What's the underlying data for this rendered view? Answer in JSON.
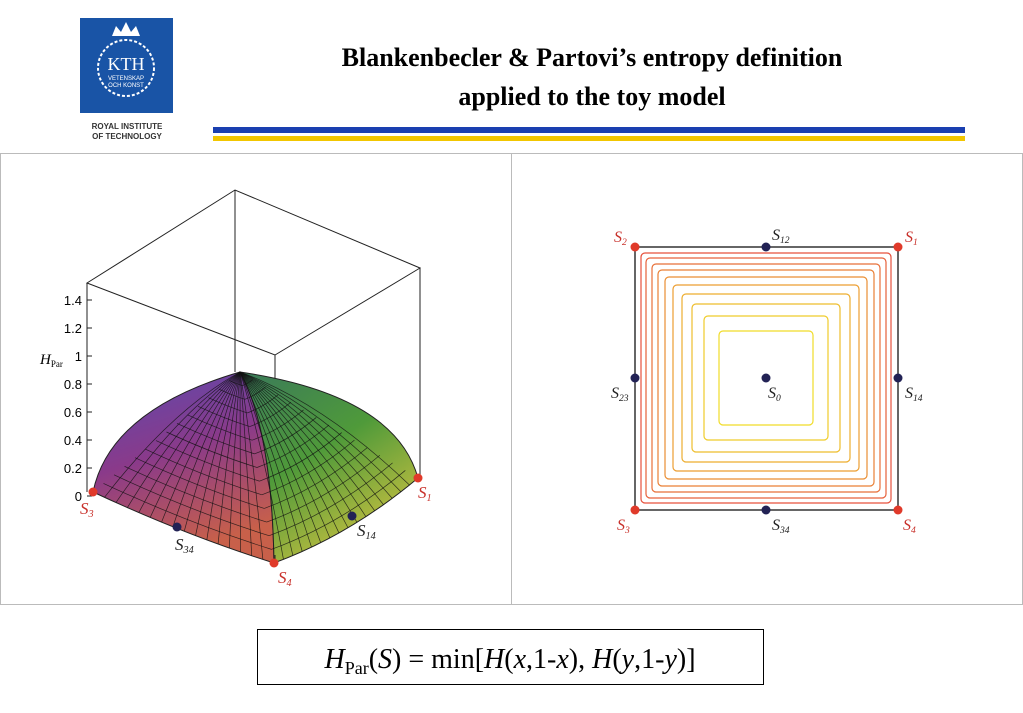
{
  "header": {
    "logo": {
      "name": "KTH",
      "motto": [
        "VETENSKAP",
        "OCH KONST"
      ],
      "institution": [
        "ROYAL INSTITUTE",
        "OF TECHNOLOGY"
      ]
    },
    "title": [
      "Blankenbecler & Partovi’s entropy definition",
      "applied to the toy model"
    ]
  },
  "left_plot": {
    "axis_label": {
      "base": "H",
      "sub": "Par"
    },
    "ticks": [
      "0",
      "0.2",
      "0.4",
      "0.6",
      "0.8",
      "1",
      "1.2",
      "1.4"
    ],
    "points": [
      {
        "base": "S",
        "sub": "3"
      },
      {
        "base": "S",
        "sub": "1"
      },
      {
        "base": "S",
        "sub": "4"
      },
      {
        "base": "S",
        "sub": "34"
      },
      {
        "base": "S",
        "sub": "14"
      }
    ]
  },
  "right_plot": {
    "points": [
      {
        "base": "S",
        "sub": "2"
      },
      {
        "base": "S",
        "sub": "12"
      },
      {
        "base": "S",
        "sub": "1"
      },
      {
        "base": "S",
        "sub": "23"
      },
      {
        "base": "S",
        "sub": "0"
      },
      {
        "base": "S",
        "sub": "14"
      },
      {
        "base": "S",
        "sub": "3"
      },
      {
        "base": "S",
        "sub": "34"
      },
      {
        "base": "S",
        "sub": "4"
      }
    ]
  },
  "formula": [
    {
      "text": "H",
      "italic": true
    },
    {
      "text": "Par",
      "sub": true
    },
    {
      "text": "("
    },
    {
      "text": "S",
      "italic": true
    },
    {
      "text": ") = min["
    },
    {
      "text": "H",
      "italic": true
    },
    {
      "text": "("
    },
    {
      "text": "x",
      "italic": true
    },
    {
      "text": ",1-"
    },
    {
      "text": "x",
      "italic": true
    },
    {
      "text": "), "
    },
    {
      "text": "H",
      "italic": true
    },
    {
      "text": "("
    },
    {
      "text": "y",
      "italic": true
    },
    {
      "text": ",1-"
    },
    {
      "text": "y",
      "italic": true
    },
    {
      "text": ")]"
    }
  ]
}
